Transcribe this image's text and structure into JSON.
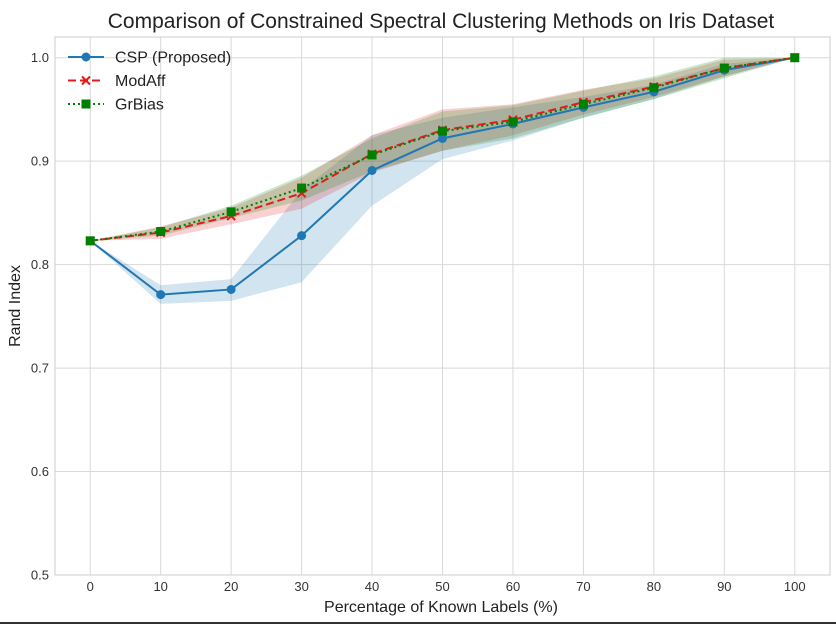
{
  "chart_data": {
    "type": "line",
    "title": "Comparison of Constrained Spectral Clustering Methods on Iris Dataset",
    "xlabel": "Percentage of Known Labels (%)",
    "ylabel": "Rand Index",
    "x": [
      0,
      10,
      20,
      30,
      40,
      50,
      60,
      70,
      80,
      90,
      100
    ],
    "xticks": [
      "0",
      "10",
      "20",
      "30",
      "40",
      "50",
      "60",
      "70",
      "80",
      "90",
      "100"
    ],
    "yticks": [
      "0.5",
      "0.6",
      "0.7",
      "0.8",
      "0.9",
      "1.0"
    ],
    "ytick_values": [
      0.5,
      0.6,
      0.7,
      0.8,
      0.9,
      1.0
    ],
    "xlim": [
      -5,
      105
    ],
    "ylim": [
      0.5,
      1.02
    ],
    "grid": true,
    "legend_position": "top-left",
    "series": [
      {
        "name": "CSP (Proposed)",
        "color": "#1f77b4",
        "linestyle": "solid",
        "marker": "circle",
        "values": [
          0.823,
          0.771,
          0.776,
          0.828,
          0.891,
          0.922,
          0.936,
          0.952,
          0.967,
          0.988,
          1.0
        ],
        "lower": [
          0.823,
          0.762,
          0.765,
          0.783,
          0.857,
          0.902,
          0.92,
          0.942,
          0.96,
          0.982,
          1.0
        ],
        "upper": [
          0.823,
          0.78,
          0.786,
          0.872,
          0.925,
          0.942,
          0.952,
          0.962,
          0.974,
          0.994,
          1.0
        ]
      },
      {
        "name": "ModAff",
        "color": "#e31a1c",
        "linestyle": "dashed",
        "marker": "x",
        "values": [
          0.823,
          0.831,
          0.847,
          0.869,
          0.907,
          0.93,
          0.94,
          0.957,
          0.972,
          0.99,
          1.0
        ],
        "lower": [
          0.823,
          0.825,
          0.839,
          0.854,
          0.889,
          0.91,
          0.925,
          0.945,
          0.962,
          0.982,
          1.0
        ],
        "upper": [
          0.823,
          0.837,
          0.855,
          0.884,
          0.925,
          0.95,
          0.955,
          0.969,
          0.98,
          0.998,
          1.0
        ]
      },
      {
        "name": "GrBias",
        "color": "#008000",
        "linestyle": "dotted",
        "marker": "square",
        "values": [
          0.823,
          0.832,
          0.851,
          0.874,
          0.906,
          0.929,
          0.938,
          0.955,
          0.971,
          0.99,
          1.0
        ],
        "lower": [
          0.823,
          0.828,
          0.845,
          0.862,
          0.89,
          0.91,
          0.922,
          0.942,
          0.96,
          0.98,
          1.0
        ],
        "upper": [
          0.823,
          0.836,
          0.857,
          0.886,
          0.922,
          0.948,
          0.954,
          0.968,
          0.982,
          1.0,
          1.0
        ]
      }
    ]
  }
}
